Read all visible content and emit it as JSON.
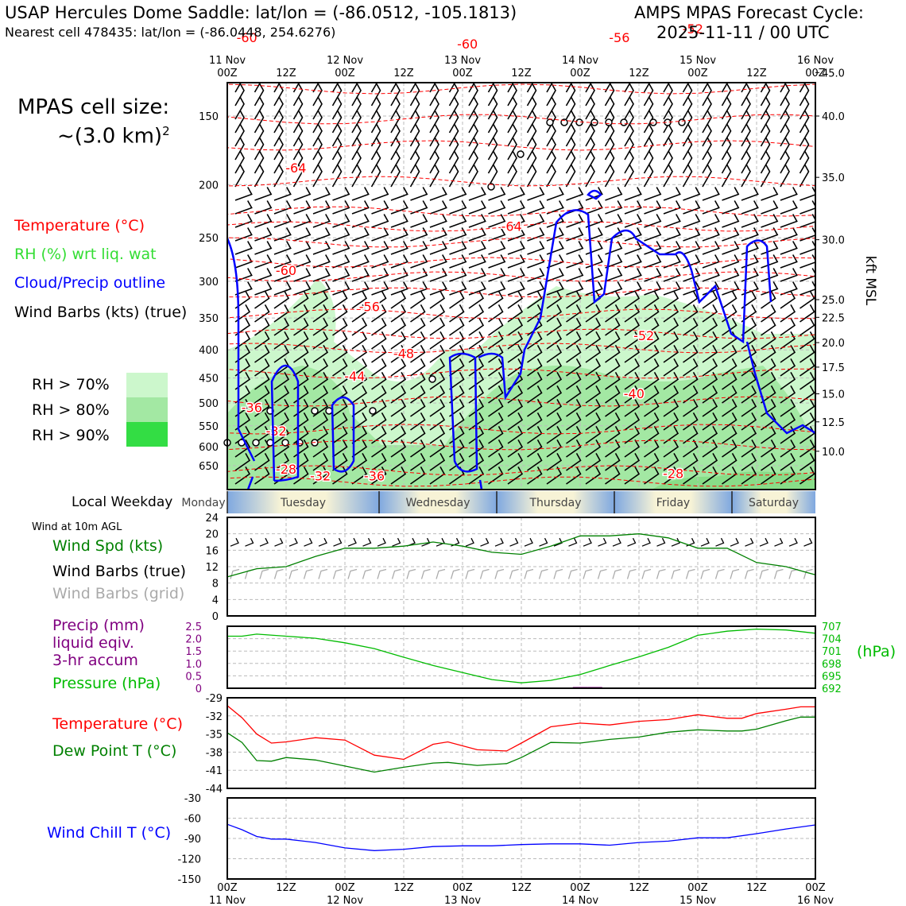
{
  "header": {
    "title_left": "USAP Hercules Dome Saddle: lat/lon = (-86.0512, -105.1813)",
    "subtitle_left": "Nearest cell 478435: lat/lon = (-86.0448, 254.6276)",
    "title_right": "AMPS MPAS Forecast Cycle:",
    "cycle": "2025-11-11 / 00 UTC"
  },
  "cell_size": {
    "label": "MPAS cell size:",
    "value": "~(3.0 km)",
    "exp": "2"
  },
  "legend": {
    "temperature": "Temperature (°C)",
    "rh": "RH (%) wrt liq. wat",
    "cloud": "Cloud/Precip outline",
    "barbs": "Wind Barbs (kts) (true)",
    "rh70": "RH > 70%",
    "rh80": "RH > 80%",
    "rh90": "RH > 90%"
  },
  "colors": {
    "temp": "#ff0000",
    "rh_label": "#33dd33",
    "cloud": "#0000ff",
    "rh70": "#ccf7cc",
    "rh80": "#a3e8a3",
    "rh90": "#33dd44",
    "wind_speed": "#008000",
    "barb_grid": "#aaaaaa",
    "precip": "#800080",
    "pressure": "#00bb00",
    "dewpoint": "#008000",
    "windchill": "#0000ff"
  },
  "time_axis": {
    "top_days": [
      "11 Nov",
      "",
      "12 Nov",
      "",
      "13 Nov",
      "",
      "14 Nov",
      "",
      "15 Nov",
      "",
      "16 Nov"
    ],
    "top_hours": [
      "00Z",
      "12Z",
      "00Z",
      "12Z",
      "00Z",
      "12Z",
      "00Z",
      "12Z",
      "00Z",
      "12Z",
      "00Z"
    ],
    "bottom_hours": [
      "00Z",
      "12Z",
      "00Z",
      "12Z",
      "00Z",
      "12Z",
      "00Z",
      "12Z",
      "00Z",
      "12Z",
      "00Z"
    ],
    "bottom_days": [
      "11 Nov",
      "",
      "12 Nov",
      "",
      "13 Nov",
      "",
      "14 Nov",
      "",
      "15 Nov",
      "",
      "16 Nov"
    ]
  },
  "weekday": {
    "label": "Local Weekday",
    "days": [
      "Monday",
      "Tuesday",
      "Wednesday",
      "Thursday",
      "Friday",
      "Saturday"
    ]
  },
  "panels": {
    "wind_title": "Wind at 10m AGL",
    "wind_spd": "Wind Spd (kts)",
    "barbs_true": "Wind Barbs (true)",
    "barbs_grid": "Wind Barbs (grid)",
    "precip1": "Precip (mm)",
    "precip2": "liquid eqiv.",
    "precip3": "3-hr accum",
    "pressure": "Pressure (hPa)",
    "hpa": "(hPa)",
    "temp": "Temperature (°C)",
    "dew": "Dew Point T (°C)",
    "chill": "Wind Chill T (°C)"
  },
  "chart_data": {
    "type": "line",
    "profile": {
      "pressure_ticks": [
        150,
        200,
        250,
        300,
        350,
        400,
        450,
        500,
        550,
        600,
        650
      ],
      "height_label": "kft MSL",
      "height_ticks": [
        "45.0",
        "40.0",
        "35.0",
        "30.0",
        "25.0",
        "22.5",
        "20.0",
        "17.5",
        "15.0",
        "12.5",
        "10.0"
      ],
      "height_tick_pressure": [
        125,
        150,
        194,
        252,
        324,
        349,
        388,
        430,
        481,
        541,
        612
      ],
      "temp_contour_labels": [
        {
          "t": 4,
          "p": 110,
          "text": "-60"
        },
        {
          "t": 49,
          "p": 113,
          "text": "-60"
        },
        {
          "t": 80,
          "p": 110,
          "text": "-56"
        },
        {
          "t": 95,
          "p": 106,
          "text": "-52"
        },
        {
          "t": 14,
          "p": 190,
          "text": "-64"
        },
        {
          "t": 58,
          "p": 243,
          "text": "-64"
        },
        {
          "t": 12,
          "p": 292,
          "text": "-60"
        },
        {
          "t": 29,
          "p": 340,
          "text": "-56"
        },
        {
          "t": 36,
          "p": 414,
          "text": "-48"
        },
        {
          "t": 26,
          "p": 455,
          "text": "-44"
        },
        {
          "t": 85,
          "p": 384,
          "text": "-52"
        },
        {
          "t": 83,
          "p": 490,
          "text": "-40"
        },
        {
          "t": 5,
          "p": 519,
          "text": "-36"
        },
        {
          "t": 10,
          "p": 573,
          "text": "-32"
        },
        {
          "t": 12,
          "p": 672,
          "text": "-28"
        },
        {
          "t": 19,
          "p": 692,
          "text": "-32"
        },
        {
          "t": 30,
          "p": 692,
          "text": "-36"
        },
        {
          "t": 91,
          "p": 685,
          "text": "-28"
        }
      ]
    },
    "wind10m": {
      "ylim": [
        0,
        24
      ],
      "yticks": [
        0,
        4,
        8,
        12,
        16,
        20,
        24
      ],
      "t_hours": [
        0,
        6,
        12,
        18,
        24,
        30,
        36,
        42,
        48,
        54,
        60,
        66,
        72,
        78,
        84,
        90,
        96,
        102,
        108,
        114,
        120
      ],
      "speed_kts": [
        9.5,
        11.5,
        12,
        14.5,
        16.5,
        16.5,
        17,
        18,
        17,
        15.5,
        15,
        17,
        19.5,
        19.5,
        20,
        19,
        16.5,
        16.5,
        13,
        12,
        10
      ]
    },
    "precip_pressure": {
      "precip_ylim": [
        0,
        2.5
      ],
      "precip_ticks": [
        "0",
        "0.5",
        "1.0",
        "1.5",
        "2.0",
        "2.5"
      ],
      "pressure_ylim": [
        692,
        707
      ],
      "pressure_ticks": [
        692,
        695,
        698,
        701,
        704,
        707
      ],
      "t_hours": [
        0,
        3,
        6,
        12,
        18,
        24,
        30,
        36,
        42,
        48,
        54,
        60,
        66,
        72,
        78,
        84,
        90,
        96,
        102,
        108,
        114,
        120
      ],
      "pressure_hPa": [
        704.6,
        704.6,
        705.1,
        704.6,
        704.1,
        703,
        701.6,
        699.5,
        697.5,
        695.8,
        694.1,
        693.3,
        693.9,
        695.3,
        697.5,
        699.6,
        701.9,
        704.8,
        705.8,
        706.3,
        706.1,
        705.3
      ],
      "precip_mm": [
        {
          "t": 69,
          "v": 0.02
        },
        {
          "t": 72,
          "v": 0.05
        },
        {
          "t": 75,
          "v": 0.05
        },
        {
          "t": 99,
          "v": 0.03
        },
        {
          "t": 105,
          "v": 0.03
        }
      ]
    },
    "temperature": {
      "ylim": [
        -44,
        -29
      ],
      "yticks": [
        -44,
        -41,
        -38,
        -35,
        -32,
        -29
      ],
      "t_hours": [
        0,
        3,
        6,
        9,
        12,
        18,
        24,
        30,
        36,
        42,
        45,
        51,
        57,
        60,
        66,
        72,
        78,
        84,
        90,
        96,
        102,
        105,
        108,
        114,
        117,
        120
      ],
      "temp_C": [
        -30.3,
        -32.3,
        -35,
        -36.5,
        -36.3,
        -35.6,
        -36,
        -38.5,
        -39.2,
        -36.7,
        -36.3,
        -37.6,
        -37.8,
        -36.5,
        -33.8,
        -33.2,
        -33.5,
        -32.9,
        -32.6,
        -31.8,
        -32.4,
        -32.4,
        -31.6,
        -30.9,
        -30.5,
        -30.5
      ],
      "dewpoint_C": [
        -34.8,
        -36.4,
        -39.4,
        -39.5,
        -38.9,
        -39.3,
        -40.3,
        -41.3,
        -40.5,
        -39.8,
        -39.7,
        -40.2,
        -39.9,
        -38.9,
        -36.4,
        -36.5,
        -35.9,
        -35.5,
        -34.7,
        -34.3,
        -34.5,
        -34.5,
        -34.2,
        -32.8,
        -32.2,
        -32.2
      ]
    },
    "wind_chill": {
      "ylim": [
        -150,
        -30
      ],
      "yticks": [
        -150,
        -120,
        -90,
        -60,
        -30
      ],
      "t_hours": [
        0,
        3,
        6,
        9,
        12,
        18,
        24,
        30,
        36,
        42,
        48,
        54,
        60,
        66,
        72,
        78,
        84,
        90,
        96,
        102,
        108,
        114,
        120
      ],
      "chill_C": [
        -69,
        -77,
        -87,
        -91,
        -91,
        -96,
        -104,
        -108,
        -106,
        -102,
        -101,
        -101,
        -99,
        -98,
        -98,
        -100,
        -96,
        -94,
        -89,
        -89,
        -83,
        -76,
        -70
      ]
    }
  }
}
